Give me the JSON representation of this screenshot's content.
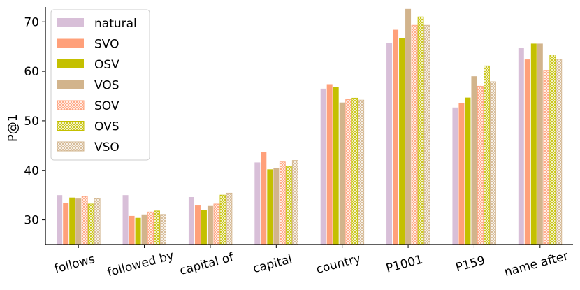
{
  "chart_data": {
    "type": "bar",
    "ylabel": "P@1",
    "xlabel": "",
    "ylim": [
      25,
      73
    ],
    "yticks": [
      30,
      40,
      50,
      60,
      70
    ],
    "grid": false,
    "legend_position": "top-left",
    "categories": [
      "follows",
      "followed by",
      "capital of",
      "capital",
      "country",
      "P1001",
      "P159",
      "name after"
    ],
    "series": [
      {
        "name": "natural",
        "values": [
          35.0,
          35.0,
          34.6,
          41.6,
          56.5,
          65.8,
          52.7,
          64.8
        ],
        "color": "#d8bfd8",
        "hatch": false
      },
      {
        "name": "SVO",
        "values": [
          33.4,
          30.8,
          32.9,
          43.7,
          57.4,
          68.4,
          53.6,
          62.4
        ],
        "color": "#ffa07a",
        "hatch": false
      },
      {
        "name": "OSV",
        "values": [
          34.5,
          30.4,
          32.0,
          40.2,
          56.9,
          66.7,
          54.7,
          65.6
        ],
        "color": "#c4c000",
        "hatch": false
      },
      {
        "name": "VOS",
        "values": [
          34.3,
          31.1,
          32.8,
          40.4,
          53.7,
          72.6,
          59.0,
          65.6
        ],
        "color": "#d2b48c",
        "hatch": false
      },
      {
        "name": "SOV",
        "values": [
          34.7,
          31.6,
          33.2,
          41.7,
          54.3,
          69.3,
          57.0,
          60.2
        ],
        "color": "#ffa07a",
        "hatch": true
      },
      {
        "name": "OVS",
        "values": [
          33.2,
          31.8,
          35.0,
          40.8,
          54.6,
          71.0,
          61.1,
          63.3
        ],
        "color": "#c4c000",
        "hatch": true
      },
      {
        "name": "VSO",
        "values": [
          34.3,
          31.1,
          35.4,
          42.0,
          54.2,
          69.3,
          57.9,
          62.4
        ],
        "color": "#d2b48c",
        "hatch": true
      }
    ]
  }
}
